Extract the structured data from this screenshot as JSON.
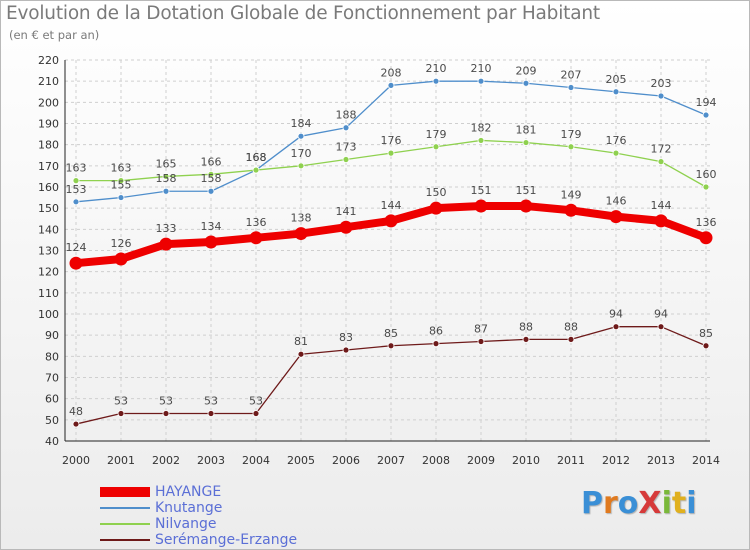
{
  "header": {
    "title": "Evolution de la Dotation Globale de Fonctionnement par Habitant",
    "subtitle": "(en € et par an)"
  },
  "logo": {
    "text": "ProXiti",
    "letter_colors": [
      "#3a8fd6",
      "#e07a1f",
      "#3a8fd6",
      "#d63a3a",
      "#7ab83a",
      "#e0b01f",
      "#3a8fd6"
    ]
  },
  "chart_data": {
    "type": "line",
    "x": [
      2000,
      2001,
      2002,
      2003,
      2004,
      2005,
      2006,
      2007,
      2008,
      2009,
      2010,
      2011,
      2012,
      2013,
      2014
    ],
    "ylim": [
      40,
      220
    ],
    "yticks": [
      40,
      50,
      60,
      70,
      80,
      90,
      100,
      110,
      120,
      130,
      140,
      150,
      160,
      170,
      180,
      190,
      200,
      210,
      220
    ],
    "grid": true,
    "legend_position": "bottom-left",
    "series": [
      {
        "name": "HAYANGE",
        "color": "#ee0000",
        "emphasis": true,
        "values": [
          124,
          126,
          133,
          134,
          136,
          138,
          141,
          144,
          150,
          151,
          151,
          149,
          146,
          144,
          136
        ]
      },
      {
        "name": "Knutange",
        "color": "#4f8ecb",
        "values": [
          153,
          155,
          158,
          158,
          168,
          184,
          188,
          208,
          210,
          210,
          209,
          207,
          205,
          203,
          194
        ]
      },
      {
        "name": "Nilvange",
        "color": "#8fd14f",
        "values": [
          163,
          163,
          165,
          166,
          168,
          170,
          173,
          176,
          179,
          182,
          181,
          179,
          176,
          172,
          160
        ]
      },
      {
        "name": "Serémange-Erzange",
        "color": "#6e1a1a",
        "values": [
          48,
          53,
          53,
          53,
          53,
          81,
          83,
          85,
          86,
          87,
          88,
          88,
          94,
          94,
          85
        ]
      }
    ]
  }
}
